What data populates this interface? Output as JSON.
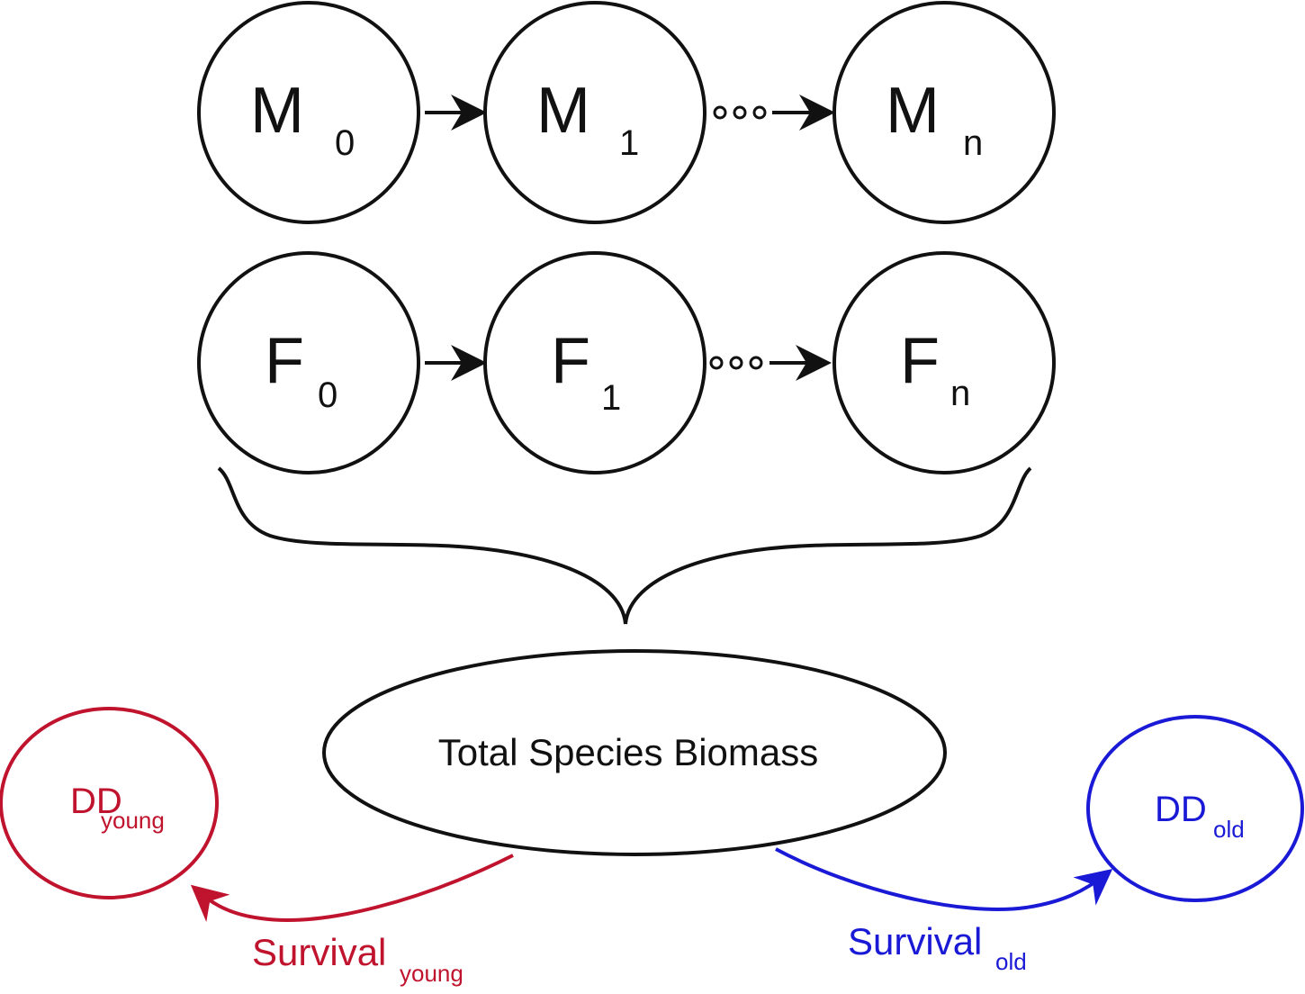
{
  "colors": {
    "stroke": "#111111",
    "young": "#c0132d",
    "old": "#1a1ad6"
  },
  "male_row": [
    {
      "letter": "M",
      "sub": "0"
    },
    {
      "letter": "M",
      "sub": "1"
    },
    {
      "letter": "M",
      "sub": "n"
    }
  ],
  "female_row": [
    {
      "letter": "F",
      "sub": "0"
    },
    {
      "letter": "F",
      "sub": "1"
    },
    {
      "letter": "F",
      "sub": "n"
    }
  ],
  "total": {
    "label": "Total Species Biomass"
  },
  "dd_young": {
    "main": "DD",
    "sub": "young"
  },
  "dd_old": {
    "main": "DD",
    "sub": "old"
  },
  "survival_young": {
    "main": "Survival",
    "sub": "young"
  },
  "survival_old": {
    "main": "Survival",
    "sub": "old"
  }
}
